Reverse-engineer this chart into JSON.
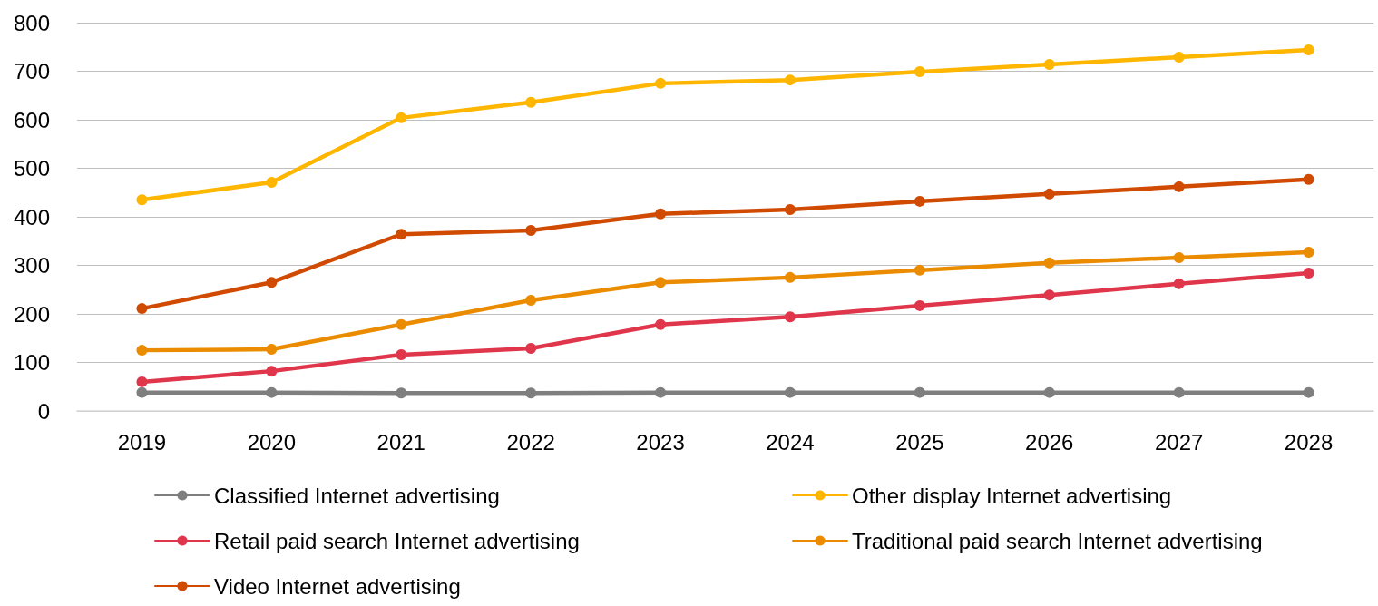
{
  "chart_data": {
    "type": "line",
    "categories": [
      "2019",
      "2020",
      "2021",
      "2022",
      "2023",
      "2024",
      "2025",
      "2026",
      "2027",
      "2028"
    ],
    "series": [
      {
        "name": "Classified Internet advertising",
        "color": "#7f7f7f",
        "values": [
          38,
          38,
          37,
          37,
          38,
          38,
          38,
          38,
          38,
          38
        ]
      },
      {
        "name": "Other display Internet advertising",
        "color": "#ffb600",
        "values": [
          435,
          471,
          604,
          636,
          675,
          682,
          699,
          714,
          729,
          744
        ]
      },
      {
        "name": "Retail paid search Internet advertising",
        "color": "#e0364b",
        "values": [
          60,
          82,
          116,
          129,
          178,
          194,
          217,
          239,
          262,
          284
        ]
      },
      {
        "name": "Traditional paid search Internet advertising",
        "color": "#eb8c00",
        "values": [
          125,
          127,
          178,
          228,
          265,
          275,
          290,
          305,
          316,
          327
        ]
      },
      {
        "name": "Video Internet advertising",
        "color": "#d04a02",
        "values": [
          211,
          265,
          364,
          372,
          406,
          415,
          432,
          447,
          462,
          477
        ]
      }
    ],
    "ylim": [
      0,
      800
    ],
    "yticks": [
      0,
      100,
      200,
      300,
      400,
      500,
      600,
      700,
      800
    ],
    "grid": "y",
    "legend": "bottom",
    "marker": "circle",
    "line_style": "solid"
  }
}
